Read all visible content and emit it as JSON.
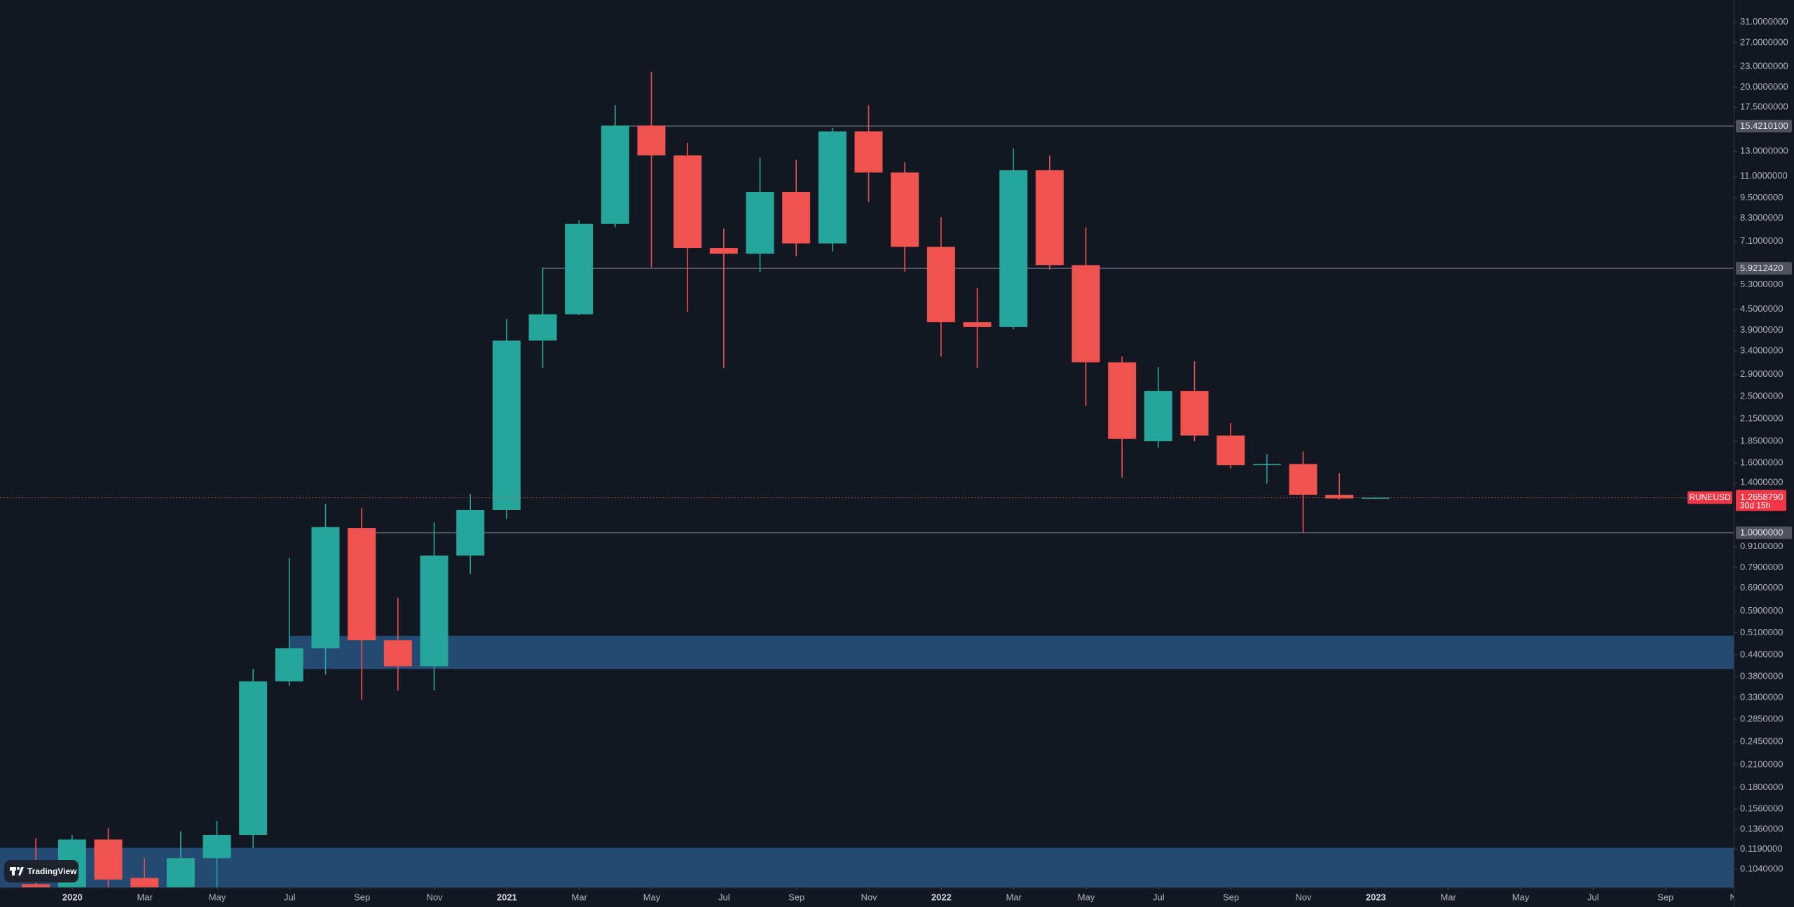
{
  "chart_data": {
    "type": "candlestick",
    "log_scale": true,
    "grid": false,
    "watermark": "TradingView",
    "up_color": "#26a69a",
    "down_color": "#ef5350",
    "zone_color": "#234a72",
    "line_color": "#5d606b",
    "xlim": [
      "2019-11",
      "2023-11"
    ],
    "ylim": [
      0.092,
      36
    ],
    "xticks": [
      {
        "value": "2020-01",
        "label": "2020"
      },
      {
        "value": "2020-03",
        "label": "Mar"
      },
      {
        "value": "2020-05",
        "label": "May"
      },
      {
        "value": "2020-07",
        "label": "Jul"
      },
      {
        "value": "2020-09",
        "label": "Sep"
      },
      {
        "value": "2020-11",
        "label": "Nov"
      },
      {
        "value": "2021-01",
        "label": "2021"
      },
      {
        "value": "2021-03",
        "label": "Mar"
      },
      {
        "value": "2021-05",
        "label": "May"
      },
      {
        "value": "2021-07",
        "label": "Jul"
      },
      {
        "value": "2021-09",
        "label": "Sep"
      },
      {
        "value": "2021-11",
        "label": "Nov"
      },
      {
        "value": "2022-01",
        "label": "2022"
      },
      {
        "value": "2022-03",
        "label": "Mar"
      },
      {
        "value": "2022-05",
        "label": "May"
      },
      {
        "value": "2022-07",
        "label": "Jul"
      },
      {
        "value": "2022-09",
        "label": "Sep"
      },
      {
        "value": "2022-11",
        "label": "Nov"
      },
      {
        "value": "2023-01",
        "label": "2023"
      },
      {
        "value": "2023-03",
        "label": "Mar"
      },
      {
        "value": "2023-05",
        "label": "May"
      },
      {
        "value": "2023-07",
        "label": "Jul"
      },
      {
        "value": "2023-09",
        "label": "Sep"
      },
      {
        "value": "2023-11",
        "label": "Nov"
      }
    ],
    "yticks": [
      {
        "value": 31,
        "label": "31.0000000"
      },
      {
        "value": 27,
        "label": "27.0000000"
      },
      {
        "value": 23,
        "label": "23.0000000"
      },
      {
        "value": 20,
        "label": "20.0000000"
      },
      {
        "value": 17.5,
        "label": "17.5000000"
      },
      {
        "value": 13,
        "label": "13.0000000"
      },
      {
        "value": 11,
        "label": "11.0000000"
      },
      {
        "value": 9.5,
        "label": "9.5000000"
      },
      {
        "value": 8.3,
        "label": "8.3000000"
      },
      {
        "value": 7.1,
        "label": "7.1000000"
      },
      {
        "value": 5.3,
        "label": "5.3000000"
      },
      {
        "value": 4.5,
        "label": "4.5000000"
      },
      {
        "value": 3.9,
        "label": "3.9000000"
      },
      {
        "value": 3.4,
        "label": "3.4000000"
      },
      {
        "value": 2.9,
        "label": "2.9000000"
      },
      {
        "value": 2.5,
        "label": "2.5000000"
      },
      {
        "value": 2.15,
        "label": "2.1500000"
      },
      {
        "value": 1.85,
        "label": "1.8500000"
      },
      {
        "value": 1.6,
        "label": "1.6000000"
      },
      {
        "value": 1.4,
        "label": "1.4000000"
      },
      {
        "value": 0.91,
        "label": "0.9100000"
      },
      {
        "value": 0.79,
        "label": "0.7900000"
      },
      {
        "value": 0.69,
        "label": "0.6900000"
      },
      {
        "value": 0.59,
        "label": "0.5900000"
      },
      {
        "value": 0.51,
        "label": "0.5100000"
      },
      {
        "value": 0.44,
        "label": "0.4400000"
      },
      {
        "value": 0.38,
        "label": "0.3800000"
      },
      {
        "value": 0.33,
        "label": "0.3300000"
      },
      {
        "value": 0.285,
        "label": "0.2850000"
      },
      {
        "value": 0.245,
        "label": "0.2450000"
      },
      {
        "value": 0.21,
        "label": "0.2100000"
      },
      {
        "value": 0.18,
        "label": "0.1800000"
      },
      {
        "value": 0.156,
        "label": "0.1560000"
      },
      {
        "value": 0.136,
        "label": "0.1360000"
      },
      {
        "value": 0.119,
        "label": "0.1190000"
      },
      {
        "value": 0.104,
        "label": "0.1040000"
      }
    ],
    "x": [
      "2019-12",
      "2020-01",
      "2020-02",
      "2020-03",
      "2020-04",
      "2020-05",
      "2020-06",
      "2020-07",
      "2020-08",
      "2020-09",
      "2020-10",
      "2020-11",
      "2020-12",
      "2021-01",
      "2021-02",
      "2021-03",
      "2021-04",
      "2021-05",
      "2021-06",
      "2021-07",
      "2021-08",
      "2021-09",
      "2021-10",
      "2021-11",
      "2021-12",
      "2022-01",
      "2022-02",
      "2022-03",
      "2022-04",
      "2022-05",
      "2022-06",
      "2022-07",
      "2022-08",
      "2022-09",
      "2022-10",
      "2022-11",
      "2022-12",
      "2023-01"
    ],
    "series": [
      {
        "name": "RUNEUSD",
        "open": [
          0.094,
          0.091,
          0.127,
          0.098,
          0.088,
          0.112,
          0.131,
          0.368,
          0.46,
          1.031,
          0.485,
          0.407,
          0.857,
          1.166,
          3.641,
          4.346,
          7.98,
          15.46,
          12.66,
          6.79,
          6.53,
          9.9,
          7.0,
          14.88,
          11.28,
          6.84,
          4.12,
          3.99,
          11.45,
          6.05,
          3.146,
          1.85,
          2.596,
          1.923,
          1.575,
          1.587,
          1.289,
          1.26
        ],
        "high": [
          0.128,
          0.131,
          0.137,
          0.112,
          0.134,
          0.144,
          0.4,
          0.844,
          1.212,
          1.184,
          0.645,
          1.072,
          1.299,
          4.21,
          5.96,
          8.17,
          17.76,
          22.2,
          13.78,
          7.74,
          12.47,
          12.28,
          15.23,
          17.76,
          12.09,
          8.36,
          5.19,
          13.26,
          12.66,
          7.8,
          3.27,
          3.05,
          3.17,
          2.092,
          1.7,
          1.727,
          1.492,
          1.27
        ],
        "low": [
          0.083,
          0.088,
          0.092,
          0.086,
          0.085,
          0.092,
          0.12,
          0.357,
          0.385,
          0.325,
          0.346,
          0.346,
          0.758,
          1.097,
          3.027,
          4.32,
          7.8,
          5.96,
          4.41,
          3.027,
          5.78,
          6.43,
          6.63,
          9.24,
          5.78,
          3.27,
          3.027,
          3.93,
          5.87,
          2.349,
          1.447,
          1.767,
          1.85,
          1.539,
          1.392,
          1.0,
          1.25,
          1.255
        ],
        "close": [
          0.089,
          0.127,
          0.097,
          0.088,
          0.112,
          0.131,
          0.368,
          0.46,
          1.039,
          0.485,
          0.407,
          0.857,
          1.166,
          3.641,
          4.346,
          7.98,
          15.46,
          12.66,
          6.79,
          6.53,
          9.9,
          7.0,
          14.88,
          11.28,
          6.84,
          4.12,
          3.99,
          11.45,
          6.05,
          3.146,
          1.879,
          2.596,
          1.923,
          1.575,
          1.587,
          1.289,
          1.26,
          1.265879
        ]
      }
    ],
    "hlines": [
      {
        "value": 15.42101,
        "label": "15.4210100",
        "start": "2021-04"
      },
      {
        "value": 5.921242,
        "label": "5.9212420",
        "start": "2021-02"
      },
      {
        "value": 1.0,
        "label": "1.0000000",
        "start": "2020-09"
      }
    ],
    "zones": [
      {
        "from": 0.4,
        "to": 0.5,
        "start": "2020-07"
      },
      {
        "from": 0.09,
        "to": 0.12,
        "start": "2019-11"
      }
    ],
    "last_price": {
      "value": 1.265879,
      "label": "1.2658790"
    },
    "countdown": "30d 15h"
  }
}
